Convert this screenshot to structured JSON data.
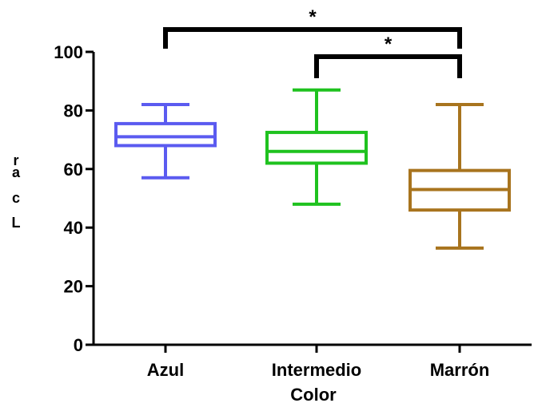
{
  "chart_data": {
    "type": "box",
    "title": "",
    "xlabel": "Color",
    "ylabel": "L*c*a*r",
    "ylabel_chars": [
      "r",
      "a",
      "c",
      "L"
    ],
    "ylim": [
      0,
      100
    ],
    "yticks": [
      0,
      20,
      40,
      60,
      80,
      100
    ],
    "categories": [
      "Azul",
      "Intermedio",
      "Marrón"
    ],
    "boxes": [
      {
        "category": "Azul",
        "min": 57,
        "q1": 68,
        "median": 71,
        "q3": 75.5,
        "max": 82,
        "color": "#5b5bf0"
      },
      {
        "category": "Intermedio",
        "min": 48,
        "q1": 62,
        "median": 66,
        "q3": 72.5,
        "max": 87,
        "color": "#1fc21f"
      },
      {
        "category": "Marrón",
        "min": 33,
        "q1": 46,
        "median": 53,
        "q3": 59.5,
        "max": 82,
        "color": "#a8741e"
      }
    ],
    "significance": [
      {
        "from": "Azul",
        "to": "Marrón",
        "label": "*"
      },
      {
        "from": "Intermedio",
        "to": "Marrón",
        "label": "*"
      }
    ],
    "grid": false,
    "legend": "none"
  }
}
